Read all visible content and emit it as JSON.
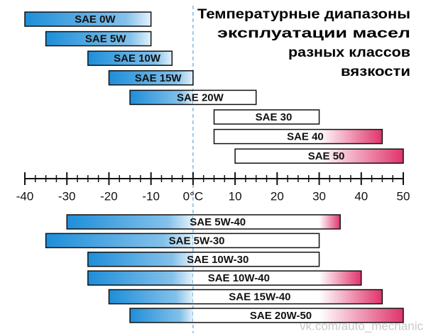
{
  "chart_data": {
    "type": "range_bar",
    "title": [
      "Температурные диапазоны",
      "эксплуатации масел",
      "разных классов",
      "вязкости"
    ],
    "groups": [
      {
        "categories": [
          "SAE 0W",
          "SAE 5W",
          "SAE 10W",
          "SAE 15W",
          "SAE 20W",
          "SAE 30",
          "SAE 40",
          "SAE 50"
        ],
        "low": [
          -40,
          -35,
          -25,
          -20,
          -15,
          5,
          5,
          10
        ],
        "high": [
          -10,
          -10,
          -5,
          0,
          15,
          30,
          45,
          50
        ]
      },
      {
        "categories": [
          "SAE 5W-40",
          "SAE 5W-30",
          "SAE 10W-30",
          "SAE 10W-40",
          "SAE 15W-40",
          "SAE 20W-50"
        ],
        "low": [
          -30,
          -35,
          -25,
          -25,
          -20,
          -15
        ],
        "high": [
          35,
          30,
          30,
          40,
          45,
          50
        ]
      }
    ],
    "xlim": [
      -40,
      50
    ],
    "xticks": [
      -40,
      -30,
      -20,
      -10,
      {
        "value": 0,
        "label": "0°C"
      },
      10,
      20,
      30,
      40,
      50
    ],
    "xticks_minor": [
      -37.5,
      -35,
      -32.5,
      -27.5,
      -25,
      -22.5,
      -17.5,
      -15,
      -12.5,
      -7.5,
      -5,
      -2.5,
      2.5,
      5,
      7.5,
      12.5,
      15,
      17.5,
      22.5,
      25,
      27.5,
      32.5,
      35,
      37.5,
      42.5,
      45,
      47.5
    ],
    "cold_color": "#1e8ed9",
    "hot_color": "#e0346c",
    "watermark": "vk.com/auto_mechanic"
  }
}
